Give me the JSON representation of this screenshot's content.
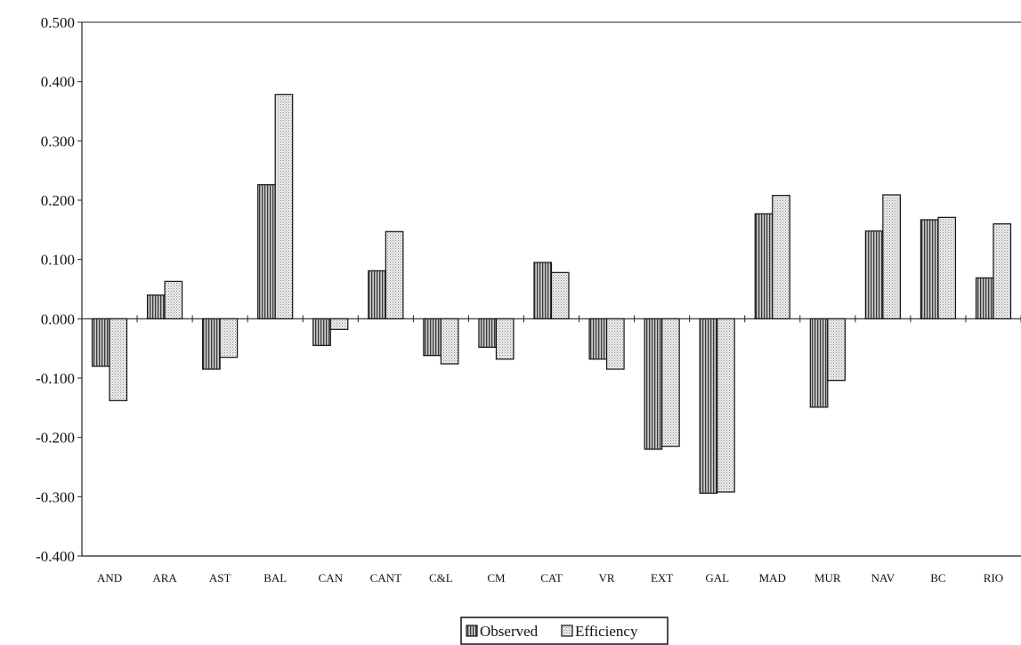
{
  "chart_data": {
    "type": "bar",
    "title": "",
    "xlabel": "",
    "ylabel": "",
    "categories": [
      "AND",
      "ARA",
      "AST",
      "BAL",
      "CAN",
      "CANT",
      "C&L",
      "CM",
      "CAT",
      "VR",
      "EXT",
      "GAL",
      "MAD",
      "MUR",
      "NAV",
      "BC",
      "RIO"
    ],
    "series": [
      {
        "name": "Observed",
        "values": [
          -0.08,
          0.04,
          -0.085,
          0.226,
          -0.045,
          0.081,
          -0.062,
          -0.048,
          0.095,
          -0.068,
          -0.22,
          -0.294,
          0.177,
          -0.149,
          0.148,
          0.167,
          0.069
        ],
        "pattern": "vertical-stripes",
        "color": "#8a8a8a"
      },
      {
        "name": "Efficiency",
        "values": [
          -0.138,
          0.063,
          -0.065,
          0.378,
          -0.018,
          0.147,
          -0.076,
          -0.068,
          0.078,
          -0.085,
          -0.215,
          -0.292,
          0.208,
          -0.104,
          0.209,
          0.171,
          0.16
        ],
        "pattern": "dotted",
        "color": "#d4d4d4"
      }
    ],
    "ylim": [
      -0.4,
      0.5
    ],
    "yticks": [
      "0.500",
      "0.400",
      "0.300",
      "0.200",
      "0.100",
      "0.000",
      "-0.100",
      "-0.200",
      "-0.300",
      "-0.400"
    ],
    "grid": false,
    "legend": "bottom-center"
  }
}
